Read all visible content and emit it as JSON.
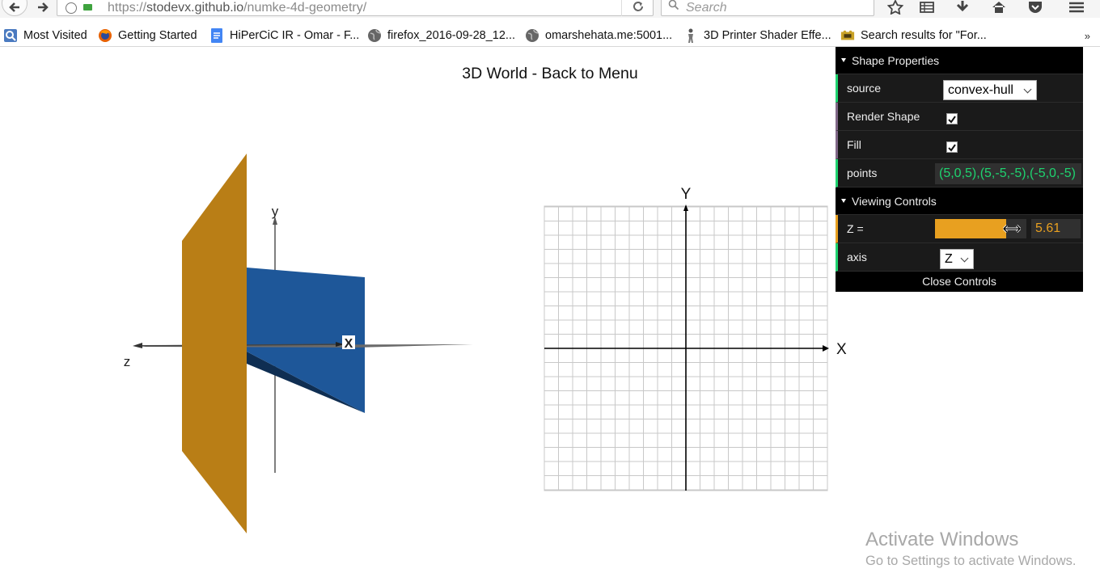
{
  "browser": {
    "url_scheme": "https://",
    "url_host": "stodevx.github.io",
    "url_path": "/numke-4d-geometry/",
    "search_placeholder": "Search"
  },
  "bookmarks": [
    {
      "label": "Most Visited",
      "icon": "most-visited-icon"
    },
    {
      "label": "Getting Started",
      "icon": "firefox-icon"
    },
    {
      "label": "HiPerCiC IR - Omar - F...",
      "icon": "google-docs-icon"
    },
    {
      "label": "firefox_2016-09-28_12...",
      "icon": "globe-icon"
    },
    {
      "label": "omarshehata.me:5001...",
      "icon": "globe-icon"
    },
    {
      "label": "3D Printer Shader Effe...",
      "icon": "figure-icon"
    },
    {
      "label": "Search results for \"For...",
      "icon": "puzzle-icon"
    }
  ],
  "page": {
    "title": "3D World - Back to Menu"
  },
  "world3d": {
    "axis_labels": {
      "x": "X",
      "y": "y",
      "z": "z"
    }
  },
  "grid2d": {
    "x_label": "X",
    "y_label": "Y"
  },
  "gui": {
    "shape_folder": "Shape Properties",
    "source_label": "source",
    "source_value": "convex-hull",
    "render_label": "Render Shape",
    "render_checked": true,
    "fill_label": "Fill",
    "fill_checked": true,
    "points_label": "points",
    "points_value": "(5,0,5),(5,-5,-5),(-5,0,-5)",
    "viewing_folder": "Viewing Controls",
    "z_label": "Z =",
    "z_value": "5.61",
    "z_fill_fraction": 0.78,
    "axis_label": "axis",
    "axis_value": "Z",
    "close_label": "Close Controls"
  },
  "watermark": {
    "line1": "Activate Windows",
    "line2": "Go to Settings to activate Windows."
  },
  "colors": {
    "orange_plane": "#b97e16",
    "blue_plane": "#1e5799",
    "gui_accent_green": "#1ed36f",
    "gui_accent_orange": "#e8a020"
  }
}
